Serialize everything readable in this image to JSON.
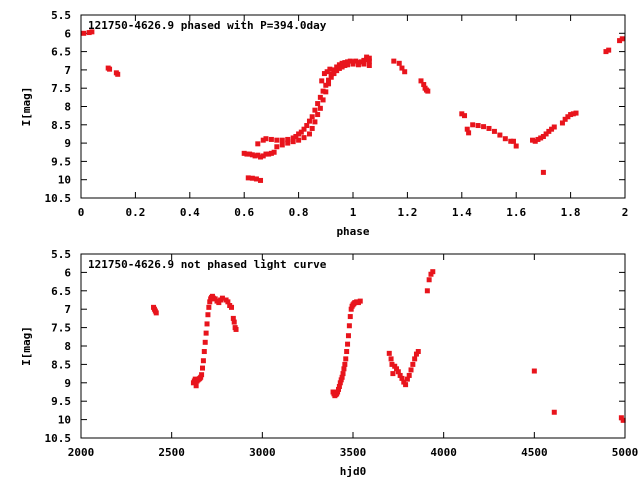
{
  "chart_data": [
    {
      "type": "scatter",
      "title": "121750-4626.9 phased with P=394.0day",
      "xlabel": "phase",
      "ylabel": "I[mag]",
      "xlim": [
        0,
        2
      ],
      "ylim": [
        10.5,
        5.5
      ],
      "y_inverted": true,
      "xticks": [
        "0",
        "0.2",
        "0.4",
        "0.6",
        "0.8",
        "1",
        "1.2",
        "1.4",
        "1.6",
        "1.8",
        "2"
      ],
      "yticks": [
        "5.5",
        "6",
        "6.5",
        "7",
        "7.5",
        "8",
        "8.5",
        "9",
        "9.5",
        "10",
        "10.5"
      ],
      "grid": false,
      "color": "#e8141c",
      "points": [
        [
          0.01,
          6.0
        ],
        [
          0.03,
          5.98
        ],
        [
          0.04,
          5.96
        ],
        [
          0.1,
          6.95
        ],
        [
          0.105,
          6.98
        ],
        [
          0.13,
          7.08
        ],
        [
          0.135,
          7.12
        ],
        [
          0.6,
          9.28
        ],
        [
          0.61,
          9.3
        ],
        [
          0.62,
          9.3
        ],
        [
          0.63,
          9.32
        ],
        [
          0.64,
          9.35
        ],
        [
          0.65,
          9.33
        ],
        [
          0.66,
          9.38
        ],
        [
          0.67,
          9.35
        ],
        [
          0.68,
          9.3
        ],
        [
          0.69,
          9.3
        ],
        [
          0.7,
          9.28
        ],
        [
          0.71,
          9.25
        ],
        [
          0.615,
          9.95
        ],
        [
          0.63,
          9.96
        ],
        [
          0.645,
          9.98
        ],
        [
          0.66,
          10.02
        ],
        [
          0.65,
          9.02
        ],
        [
          0.67,
          8.92
        ],
        [
          0.68,
          8.88
        ],
        [
          0.7,
          8.9
        ],
        [
          0.72,
          8.92
        ],
        [
          0.74,
          8.92
        ],
        [
          0.76,
          8.9
        ],
        [
          0.78,
          8.86
        ],
        [
          0.79,
          8.82
        ],
        [
          0.8,
          8.75
        ],
        [
          0.81,
          8.7
        ],
        [
          0.82,
          8.62
        ],
        [
          0.83,
          8.52
        ],
        [
          0.84,
          8.4
        ],
        [
          0.85,
          8.28
        ],
        [
          0.86,
          8.1
        ],
        [
          0.87,
          7.92
        ],
        [
          0.88,
          7.75
        ],
        [
          0.89,
          7.58
        ],
        [
          0.9,
          7.42
        ],
        [
          0.91,
          7.28
        ],
        [
          0.92,
          7.12
        ],
        [
          0.93,
          7.0
        ],
        [
          0.94,
          6.92
        ],
        [
          0.95,
          6.86
        ],
        [
          0.96,
          6.82
        ],
        [
          0.97,
          6.8
        ],
        [
          0.98,
          6.78
        ],
        [
          0.99,
          6.76
        ],
        [
          1.0,
          6.78
        ],
        [
          1.01,
          6.76
        ],
        [
          1.02,
          6.8
        ],
        [
          1.03,
          6.78
        ],
        [
          1.04,
          6.74
        ],
        [
          1.05,
          6.72
        ],
        [
          1.06,
          6.76
        ],
        [
          0.72,
          9.1
        ],
        [
          0.74,
          9.05
        ],
        [
          0.76,
          9.0
        ],
        [
          0.78,
          8.96
        ],
        [
          0.8,
          8.92
        ],
        [
          0.82,
          8.85
        ],
        [
          0.84,
          8.75
        ],
        [
          0.85,
          8.6
        ],
        [
          0.86,
          8.42
        ],
        [
          0.87,
          8.22
        ],
        [
          0.88,
          8.05
        ],
        [
          0.89,
          7.82
        ],
        [
          0.9,
          7.6
        ],
        [
          0.91,
          7.38
        ],
        [
          0.92,
          7.2
        ],
        [
          0.93,
          7.1
        ],
        [
          0.94,
          7.02
        ],
        [
          0.95,
          6.96
        ],
        [
          0.96,
          6.92
        ],
        [
          0.97,
          6.88
        ],
        [
          0.98,
          6.86
        ],
        [
          1.0,
          6.84
        ],
        [
          1.02,
          6.86
        ],
        [
          1.04,
          6.84
        ],
        [
          1.06,
          6.88
        ],
        [
          0.885,
          7.3
        ],
        [
          0.895,
          7.1
        ],
        [
          0.905,
          7.05
        ],
        [
          0.915,
          6.98
        ],
        [
          1.05,
          6.65
        ],
        [
          1.06,
          6.68
        ],
        [
          1.15,
          6.76
        ],
        [
          1.17,
          6.82
        ],
        [
          1.18,
          6.95
        ],
        [
          1.19,
          7.05
        ],
        [
          1.25,
          7.3
        ],
        [
          1.26,
          7.4
        ],
        [
          1.265,
          7.5
        ],
        [
          1.27,
          7.55
        ],
        [
          1.275,
          7.58
        ],
        [
          1.4,
          8.2
        ],
        [
          1.41,
          8.25
        ],
        [
          1.42,
          8.62
        ],
        [
          1.425,
          8.72
        ],
        [
          1.44,
          8.5
        ],
        [
          1.46,
          8.52
        ],
        [
          1.48,
          8.55
        ],
        [
          1.5,
          8.6
        ],
        [
          1.52,
          8.68
        ],
        [
          1.54,
          8.78
        ],
        [
          1.56,
          8.88
        ],
        [
          1.58,
          8.95
        ],
        [
          1.59,
          8.95
        ],
        [
          1.6,
          9.08
        ],
        [
          1.66,
          8.92
        ],
        [
          1.67,
          8.95
        ],
        [
          1.68,
          8.9
        ],
        [
          1.69,
          8.86
        ],
        [
          1.7,
          8.82
        ],
        [
          1.71,
          8.75
        ],
        [
          1.72,
          8.68
        ],
        [
          1.73,
          8.62
        ],
        [
          1.74,
          8.56
        ],
        [
          1.7,
          9.8
        ],
        [
          1.77,
          8.45
        ],
        [
          1.78,
          8.35
        ],
        [
          1.79,
          8.28
        ],
        [
          1.8,
          8.22
        ],
        [
          1.81,
          8.2
        ],
        [
          1.82,
          8.18
        ],
        [
          1.93,
          6.5
        ],
        [
          1.94,
          6.46
        ],
        [
          1.98,
          6.2
        ],
        [
          1.99,
          6.15
        ]
      ]
    },
    {
      "type": "scatter",
      "title": "121750-4626.9 not phased light curve",
      "xlabel": "hjd0",
      "ylabel": "I[mag]",
      "xlim": [
        2000,
        5000
      ],
      "ylim": [
        10.5,
        5.5
      ],
      "y_inverted": true,
      "xticks": [
        "2000",
        "2500",
        "3000",
        "3500",
        "4000",
        "4500",
        "5000"
      ],
      "yticks": [
        "5.5",
        "6",
        "6.5",
        "7",
        "7.5",
        "8",
        "8.5",
        "9",
        "9.5",
        "10",
        "10.5"
      ],
      "grid": false,
      "color": "#e8141c",
      "points": [
        [
          2400,
          6.95
        ],
        [
          2405,
          7.0
        ],
        [
          2410,
          7.05
        ],
        [
          2415,
          7.1
        ],
        [
          2620,
          9.0
        ],
        [
          2625,
          8.95
        ],
        [
          2630,
          8.9
        ],
        [
          2635,
          9.08
        ],
        [
          2640,
          8.95
        ],
        [
          2645,
          8.92
        ],
        [
          2650,
          8.9
        ],
        [
          2655,
          8.88
        ],
        [
          2660,
          8.85
        ],
        [
          2665,
          8.78
        ],
        [
          2670,
          8.6
        ],
        [
          2675,
          8.4
        ],
        [
          2680,
          8.15
        ],
        [
          2685,
          7.9
        ],
        [
          2690,
          7.65
        ],
        [
          2695,
          7.4
        ],
        [
          2700,
          7.15
        ],
        [
          2705,
          6.95
        ],
        [
          2710,
          6.8
        ],
        [
          2715,
          6.72
        ],
        [
          2720,
          6.68
        ],
        [
          2725,
          6.65
        ],
        [
          2730,
          6.7
        ],
        [
          2740,
          6.72
        ],
        [
          2750,
          6.78
        ],
        [
          2760,
          6.82
        ],
        [
          2770,
          6.75
        ],
        [
          2780,
          6.7
        ],
        [
          2800,
          6.75
        ],
        [
          2810,
          6.8
        ],
        [
          2820,
          6.9
        ],
        [
          2830,
          6.95
        ],
        [
          2840,
          7.25
        ],
        [
          2845,
          7.35
        ],
        [
          2850,
          7.5
        ],
        [
          2855,
          7.55
        ],
        [
          3390,
          9.25
        ],
        [
          3395,
          9.3
        ],
        [
          3400,
          9.35
        ],
        [
          3405,
          9.32
        ],
        [
          3410,
          9.3
        ],
        [
          3415,
          9.25
        ],
        [
          3420,
          9.18
        ],
        [
          3425,
          9.1
        ],
        [
          3430,
          9.0
        ],
        [
          3435,
          8.92
        ],
        [
          3440,
          8.85
        ],
        [
          3445,
          8.75
        ],
        [
          3450,
          8.62
        ],
        [
          3455,
          8.5
        ],
        [
          3460,
          8.35
        ],
        [
          3465,
          8.15
        ],
        [
          3470,
          7.95
        ],
        [
          3475,
          7.72
        ],
        [
          3480,
          7.45
        ],
        [
          3485,
          7.2
        ],
        [
          3490,
          7.0
        ],
        [
          3495,
          6.92
        ],
        [
          3500,
          6.88
        ],
        [
          3505,
          6.85
        ],
        [
          3510,
          6.82
        ],
        [
          3520,
          6.8
        ],
        [
          3530,
          6.82
        ],
        [
          3540,
          6.78
        ],
        [
          3700,
          8.2
        ],
        [
          3710,
          8.35
        ],
        [
          3715,
          8.5
        ],
        [
          3720,
          8.75
        ],
        [
          3730,
          8.55
        ],
        [
          3740,
          8.62
        ],
        [
          3750,
          8.7
        ],
        [
          3760,
          8.8
        ],
        [
          3770,
          8.88
        ],
        [
          3780,
          8.98
        ],
        [
          3790,
          9.05
        ],
        [
          3800,
          8.9
        ],
        [
          3810,
          8.8
        ],
        [
          3820,
          8.65
        ],
        [
          3830,
          8.5
        ],
        [
          3840,
          8.35
        ],
        [
          3850,
          8.22
        ],
        [
          3860,
          8.15
        ],
        [
          3910,
          6.5
        ],
        [
          3920,
          6.2
        ],
        [
          3930,
          6.05
        ],
        [
          3940,
          5.98
        ],
        [
          4500,
          8.68
        ],
        [
          4610,
          9.8
        ],
        [
          4980,
          9.95
        ],
        [
          4990,
          10.02
        ]
      ]
    }
  ]
}
